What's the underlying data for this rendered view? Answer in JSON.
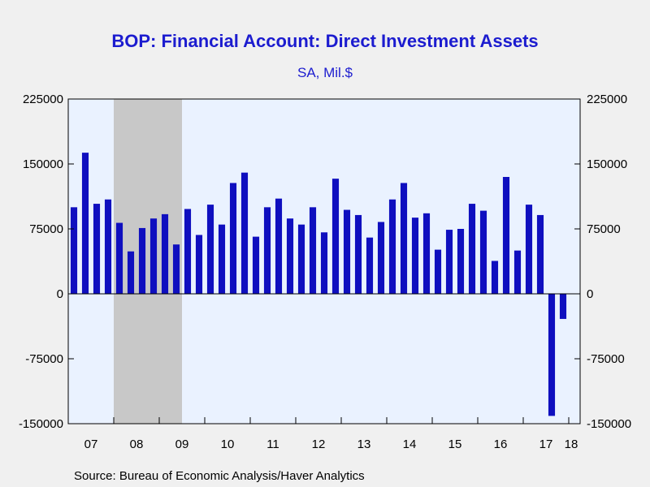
{
  "title": "BOP: Financial Account: Direct Investment Assets",
  "subtitle": "SA, Mil.$",
  "source": "Source:  Bureau of Economic Analysis/Haver Analytics",
  "colors": {
    "bar": "#0f0fbf",
    "plot_background": "#eaf2ff",
    "recession": "#c8c8c8",
    "title": "#1c1ccf",
    "page_background": "#f0f0f0"
  },
  "chart_data": {
    "type": "bar",
    "frequency": "quarterly",
    "title": "BOP: Financial Account: Direct Investment Assets",
    "subtitle": "SA, Mil.$",
    "xlabel": "",
    "ylabel": "",
    "ylim": [
      -150000,
      225000
    ],
    "yticks": [
      225000,
      150000,
      75000,
      0,
      -75000,
      -150000
    ],
    "ytick_labels": [
      "225000",
      "150000",
      "75000",
      "0",
      "-75000",
      "-150000"
    ],
    "xtick_labels": [
      "07",
      "08",
      "09",
      "10",
      "11",
      "12",
      "13",
      "14",
      "15",
      "16",
      "17",
      "18"
    ],
    "x_range": [
      "2007Q1",
      "2018Q1"
    ],
    "recession_shading": {
      "start": "2008Q1",
      "end": "2009Q2"
    },
    "grid": false,
    "categories": [
      "2007Q1",
      "2007Q2",
      "2007Q3",
      "2007Q4",
      "2008Q1",
      "2008Q2",
      "2008Q3",
      "2008Q4",
      "2009Q1",
      "2009Q2",
      "2009Q3",
      "2009Q4",
      "2010Q1",
      "2010Q2",
      "2010Q3",
      "2010Q4",
      "2011Q1",
      "2011Q2",
      "2011Q3",
      "2011Q4",
      "2012Q1",
      "2012Q2",
      "2012Q3",
      "2012Q4",
      "2013Q1",
      "2013Q2",
      "2013Q3",
      "2013Q4",
      "2014Q1",
      "2014Q2",
      "2014Q3",
      "2014Q4",
      "2015Q1",
      "2015Q2",
      "2015Q3",
      "2015Q4",
      "2016Q1",
      "2016Q2",
      "2016Q3",
      "2016Q4",
      "2017Q1",
      "2017Q2",
      "2017Q3",
      "2017Q4",
      "2018Q1"
    ],
    "values": [
      100000,
      163000,
      104000,
      109000,
      82000,
      49000,
      76000,
      87000,
      92000,
      57000,
      98000,
      68000,
      103000,
      80000,
      128000,
      140000,
      66000,
      100000,
      110000,
      87000,
      80000,
      100000,
      71000,
      133000,
      97000,
      91000,
      65000,
      83000,
      109000,
      128000,
      88000,
      93000,
      51000,
      74000,
      75000,
      104000,
      96000,
      38000,
      135000,
      50000,
      103000,
      91000,
      -141000,
      -29000,
      null
    ]
  }
}
